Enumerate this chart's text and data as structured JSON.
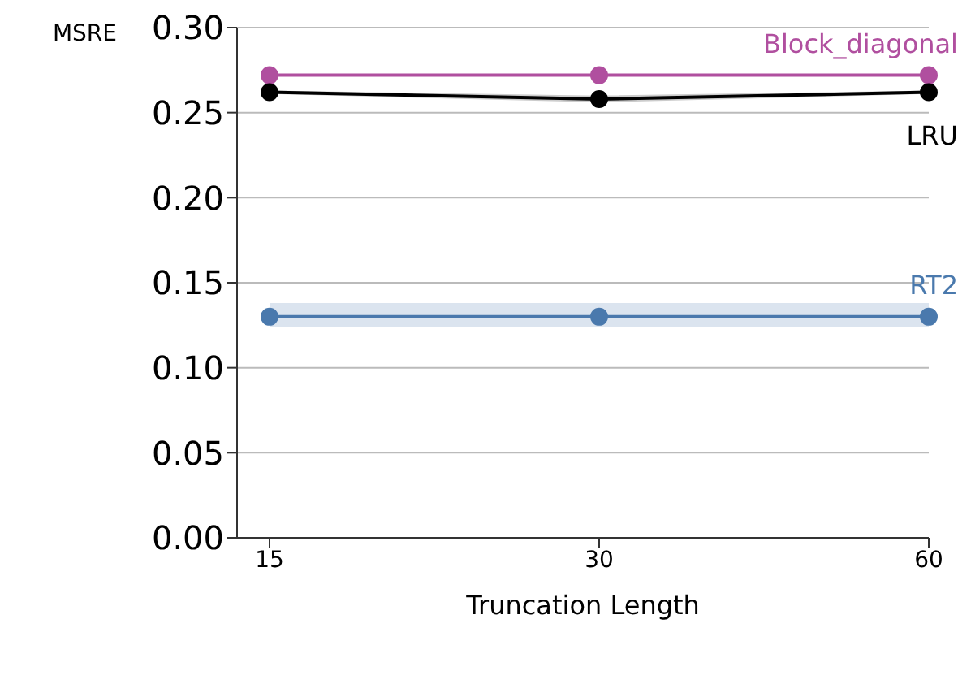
{
  "chart_data": {
    "type": "line",
    "xlabel": "Truncation Length",
    "ylabel": "MSRE",
    "categories": [
      "15",
      "30",
      "60"
    ],
    "series": [
      {
        "name": "Block_diagonal",
        "color": "#b04f9f",
        "values": [
          0.272,
          0.272,
          0.272
        ]
      },
      {
        "name": "LRU",
        "color": "#000000",
        "values": [
          0.262,
          0.258,
          0.262
        ],
        "lower": [
          0.261,
          0.256,
          0.261
        ],
        "upper": [
          0.263,
          0.26,
          0.263
        ]
      },
      {
        "name": "RT2",
        "color": "#4a79ad",
        "values": [
          0.13,
          0.13,
          0.13
        ],
        "lower": [
          0.124,
          0.124,
          0.124
        ],
        "upper": [
          0.138,
          0.138,
          0.138
        ]
      }
    ],
    "ylim": [
      0,
      0.3
    ],
    "yticks": [
      {
        "value": 0,
        "label": "0.00"
      },
      {
        "value": 0.05,
        "label": "0.05"
      },
      {
        "value": 0.1,
        "label": "0.10"
      },
      {
        "value": 0.15,
        "label": "0.15"
      },
      {
        "value": 0.2,
        "label": "0.20"
      },
      {
        "value": 0.25,
        "label": "0.25"
      },
      {
        "value": 0.3,
        "label": "0.30"
      }
    ],
    "grid": "y",
    "marker": "circle",
    "line_style": "solid"
  }
}
